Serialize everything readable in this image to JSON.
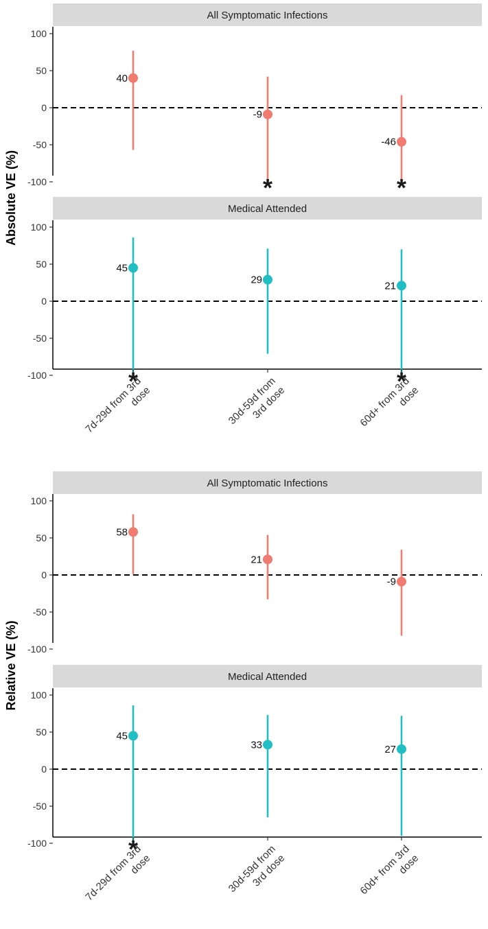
{
  "chart_data": [
    {
      "type": "scatter",
      "subtype": "point-range",
      "ylabel": "Absolute VE (%)",
      "ylim": [
        -100,
        100
      ],
      "yticks": [
        100,
        50,
        0,
        -50,
        -100
      ],
      "reference_line": 0,
      "categories": [
        "7d-29d from 3rd dose",
        "30d-59d from 3rd dose",
        "60d+ from 3rd dose"
      ],
      "category_lines": [
        [
          "7d-29d from 3rd",
          "dose"
        ],
        [
          "30d-59d from",
          "3rd dose"
        ],
        [
          "60d+ from 3rd",
          "dose"
        ]
      ],
      "panels": [
        {
          "title": "All Symptomatic Infections",
          "color": "#F07B70",
          "points": [
            {
              "value": 40,
              "label": "40",
              "lower": -57,
              "upper": 77,
              "star": false
            },
            {
              "value": -9,
              "label": "-9",
              "lower": -100,
              "upper": 42,
              "star": true
            },
            {
              "value": -46,
              "label": "-46",
              "lower": -100,
              "upper": 17,
              "star": true
            }
          ]
        },
        {
          "title": "Medical Attended",
          "color": "#21BFC4",
          "points": [
            {
              "value": 45,
              "label": "45",
              "lower": -100,
              "upper": 86,
              "star": true
            },
            {
              "value": 29,
              "label": "29",
              "lower": -71,
              "upper": 71,
              "star": false
            },
            {
              "value": 21,
              "label": "21",
              "lower": -100,
              "upper": 70,
              "star": true
            }
          ]
        }
      ],
      "star_symbol": "*"
    },
    {
      "type": "scatter",
      "subtype": "point-range",
      "ylabel": "Relative VE (%)",
      "ylim": [
        -100,
        100
      ],
      "yticks": [
        100,
        50,
        0,
        -50,
        -100
      ],
      "reference_line": 0,
      "categories": [
        "7d-29d from 3rd dose",
        "30d-59d from 3rd dose",
        "60d+ from 3rd dose"
      ],
      "category_lines": [
        [
          "7d-29d from 3rd",
          "dose"
        ],
        [
          "30d-59d from",
          "3rd dose"
        ],
        [
          "60d+ from 3rd",
          "dose"
        ]
      ],
      "panels": [
        {
          "title": "All Symptomatic Infections",
          "color": "#F07B70",
          "points": [
            {
              "value": 58,
              "label": "58",
              "lower": 1,
              "upper": 82,
              "star": false
            },
            {
              "value": 21,
              "label": "21",
              "lower": -33,
              "upper": 54,
              "star": false
            },
            {
              "value": -9,
              "label": "-9",
              "lower": -82,
              "upper": 34,
              "star": false
            }
          ]
        },
        {
          "title": "Medical Attended",
          "color": "#21BFC4",
          "points": [
            {
              "value": 45,
              "label": "45",
              "lower": -100,
              "upper": 86,
              "star": true
            },
            {
              "value": 33,
              "label": "33",
              "lower": -65,
              "upper": 73,
              "star": false
            },
            {
              "value": 27,
              "label": "27",
              "lower": -90,
              "upper": 72,
              "star": false
            }
          ]
        }
      ],
      "star_symbol": "*"
    }
  ]
}
